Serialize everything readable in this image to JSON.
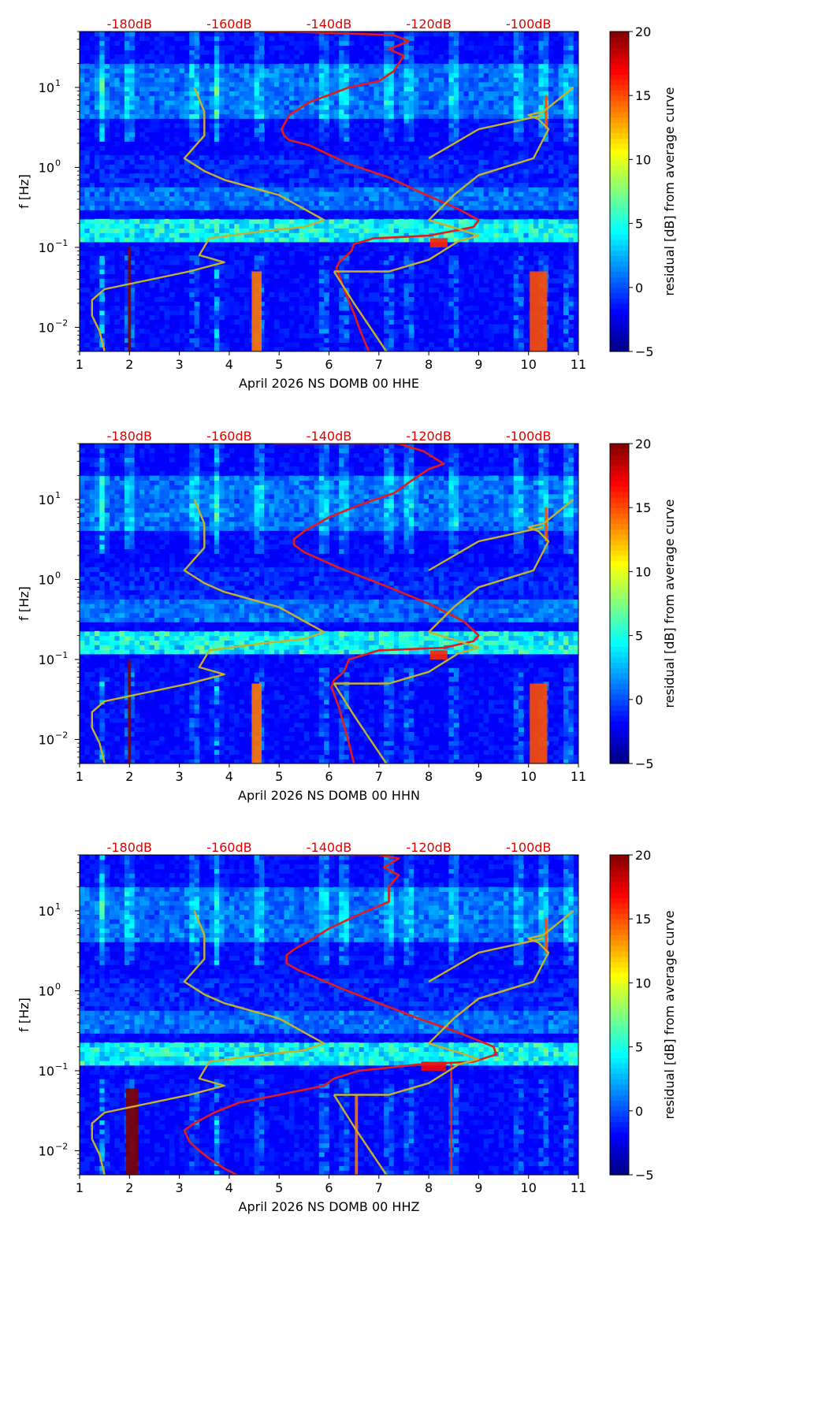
{
  "chart_data": [
    {
      "type": "heatmap",
      "xlabel": "April 2026 NS DOMB 00 HHE",
      "ylabel": "f [Hz]",
      "xlim": [
        1,
        11
      ],
      "ylim": [
        0.005,
        50
      ],
      "y_scale": "log",
      "x_ticks": [
        1,
        2,
        3,
        4,
        5,
        6,
        7,
        8,
        9,
        10,
        11
      ],
      "y_ticks": [
        {
          "value": 0.01,
          "label": "10",
          "exp": "−2"
        },
        {
          "value": 0.1,
          "label": "10",
          "exp": "−1"
        },
        {
          "value": 1,
          "label": "10",
          "exp": "0"
        },
        {
          "value": 10,
          "label": "10",
          "exp": "1"
        }
      ],
      "top_labels": [
        {
          "x": 2,
          "text": "-180dB"
        },
        {
          "x": 4,
          "text": "-160dB"
        },
        {
          "x": 6,
          "text": "-140dB"
        },
        {
          "x": 8,
          "text": "-120dB"
        },
        {
          "x": 10,
          "text": "-100dB"
        }
      ],
      "colorbar": {
        "label": "residual [dB] from average curve",
        "min": -5,
        "max": 20,
        "ticks": [
          -5,
          0,
          5,
          10,
          15,
          20
        ],
        "colormap": "jet"
      },
      "hot_columns": [
        {
          "x": 2.0,
          "w": 0.06,
          "fmin": 0.005,
          "fmax": 0.1,
          "v": 20
        },
        {
          "x": 4.55,
          "w": 0.2,
          "fmin": 0.005,
          "fmax": 0.05,
          "v": 14
        },
        {
          "x": 10.2,
          "w": 0.35,
          "fmin": 0.005,
          "fmax": 0.05,
          "v": 15
        },
        {
          "x": 8.2,
          "w": 0.35,
          "fmin": 0.1,
          "fmax": 0.13,
          "v": 16
        },
        {
          "x": 10.35,
          "w": 0.06,
          "fmin": 3,
          "fmax": 8,
          "v": 15
        }
      ],
      "series": [
        {
          "color": "#e41a1c",
          "x": [
            4.7,
            5.2,
            7.3,
            7.6,
            7.2,
            7.5,
            7.4,
            7.3,
            7.0,
            6.4,
            5.6,
            5.2,
            5.05,
            5.1,
            5.2,
            5.6,
            6.4,
            7.2,
            7.8,
            8.6,
            9.0,
            8.9,
            8.0,
            6.9,
            6.5,
            6.45,
            6.2,
            6.15,
            6.2,
            6.35,
            6.5,
            6.6,
            6.7,
            6.8
          ],
          "y": [
            50,
            50,
            45,
            38,
            30,
            25,
            20,
            16,
            12,
            10,
            6.5,
            4.5,
            3,
            2.5,
            2.2,
            1.9,
            1.1,
            0.75,
            0.5,
            0.3,
            0.22,
            0.18,
            0.14,
            0.13,
            0.11,
            0.09,
            0.065,
            0.055,
            0.045,
            0.025,
            0.015,
            0.01,
            0.007,
            0.005
          ]
        },
        {
          "color": "#c8b22a",
          "x": [
            3.3,
            3.5,
            3.5,
            3.1,
            3.5,
            3.9,
            5.0,
            5.9,
            5.5,
            4.7,
            4.0,
            3.6,
            3.4,
            3.9,
            3.2,
            1.5,
            1.25,
            1.25,
            1.4,
            1.5
          ],
          "y": [
            10,
            5,
            2.5,
            1.3,
            0.9,
            0.7,
            0.45,
            0.22,
            0.18,
            0.16,
            0.14,
            0.13,
            0.08,
            0.065,
            0.05,
            0.03,
            0.022,
            0.014,
            0.009,
            0.005
          ]
        },
        {
          "color": "#c8b22a",
          "x": [
            6.1,
            7.2,
            8.0,
            8.4,
            8.6,
            9.0,
            8.6,
            8.0,
            8.5,
            9.0,
            10.1,
            10.4,
            10.2,
            10.0,
            10.0,
            10.3,
            10.9
          ],
          "y": [
            0.05,
            0.05,
            0.07,
            0.1,
            0.12,
            0.14,
            0.17,
            0.22,
            0.45,
            0.8,
            1.3,
            3,
            4,
            4.5,
            4.5,
            5,
            10
          ]
        },
        {
          "color": "#c8b22a",
          "x": [
            6.1,
            6.5,
            7.15
          ],
          "y": [
            0.05,
            0.02,
            0.005
          ]
        },
        {
          "color": "#c8b22a",
          "x": [
            8.0,
            9.0,
            10.3
          ],
          "y": [
            1.3,
            3,
            4.5
          ]
        }
      ]
    },
    {
      "type": "heatmap",
      "xlabel": "April 2026 NS DOMB 00 HHN",
      "ylabel": "f [Hz]",
      "xlim": [
        1,
        11
      ],
      "ylim": [
        0.005,
        50
      ],
      "y_scale": "log",
      "x_ticks": [
        1,
        2,
        3,
        4,
        5,
        6,
        7,
        8,
        9,
        10,
        11
      ],
      "y_ticks": [
        {
          "value": 0.01,
          "label": "10",
          "exp": "−2"
        },
        {
          "value": 0.1,
          "label": "10",
          "exp": "−1"
        },
        {
          "value": 1,
          "label": "10",
          "exp": "0"
        },
        {
          "value": 10,
          "label": "10",
          "exp": "1"
        }
      ],
      "top_labels": [
        {
          "x": 2,
          "text": "-180dB"
        },
        {
          "x": 4,
          "text": "-160dB"
        },
        {
          "x": 6,
          "text": "-140dB"
        },
        {
          "x": 8,
          "text": "-120dB"
        },
        {
          "x": 10,
          "text": "-100dB"
        }
      ],
      "colorbar": {
        "label": "residual [dB] from average curve",
        "min": -5,
        "max": 20,
        "ticks": [
          -5,
          0,
          5,
          10,
          15,
          20
        ],
        "colormap": "jet"
      },
      "hot_columns": [
        {
          "x": 2.0,
          "w": 0.06,
          "fmin": 0.005,
          "fmax": 0.1,
          "v": 20
        },
        {
          "x": 4.55,
          "w": 0.2,
          "fmin": 0.005,
          "fmax": 0.05,
          "v": 14
        },
        {
          "x": 10.2,
          "w": 0.35,
          "fmin": 0.005,
          "fmax": 0.05,
          "v": 15
        },
        {
          "x": 8.2,
          "w": 0.35,
          "fmin": 0.1,
          "fmax": 0.13,
          "v": 16
        },
        {
          "x": 10.35,
          "w": 0.06,
          "fmin": 3,
          "fmax": 8,
          "v": 15
        }
      ],
      "series": [
        {
          "color": "#e41a1c",
          "x": [
            4.9,
            7.4,
            7.9,
            8.3,
            8.0,
            7.7,
            7.3,
            6.6,
            6.0,
            5.5,
            5.3,
            5.3,
            5.5,
            6.2,
            7.2,
            8.0,
            8.7,
            9.0,
            8.9,
            8.3,
            7.0,
            6.4,
            6.3,
            6.1,
            6.05,
            6.2,
            6.3,
            6.4,
            6.5
          ],
          "y": [
            50,
            50,
            40,
            28,
            24,
            18,
            12,
            8.5,
            6,
            4,
            3.2,
            2.7,
            2.2,
            1.4,
            0.8,
            0.5,
            0.3,
            0.2,
            0.17,
            0.14,
            0.13,
            0.1,
            0.07,
            0.055,
            0.045,
            0.025,
            0.015,
            0.009,
            0.005
          ]
        },
        {
          "color": "#c8b22a",
          "x": [
            3.3,
            3.5,
            3.5,
            3.1,
            3.5,
            3.9,
            5.0,
            5.9,
            5.5,
            4.7,
            4.0,
            3.6,
            3.4,
            3.9,
            3.2,
            1.5,
            1.25,
            1.25,
            1.4,
            1.5
          ],
          "y": [
            10,
            5,
            2.5,
            1.3,
            0.9,
            0.7,
            0.45,
            0.22,
            0.18,
            0.16,
            0.14,
            0.13,
            0.08,
            0.065,
            0.05,
            0.03,
            0.022,
            0.014,
            0.009,
            0.005
          ]
        },
        {
          "color": "#c8b22a",
          "x": [
            6.1,
            7.2,
            8.0,
            8.4,
            8.6,
            9.0,
            8.6,
            8.0,
            8.5,
            9.0,
            10.1,
            10.4,
            10.2,
            10.0,
            10.0,
            10.3,
            10.9
          ],
          "y": [
            0.05,
            0.05,
            0.07,
            0.1,
            0.12,
            0.14,
            0.17,
            0.22,
            0.45,
            0.8,
            1.3,
            3,
            4,
            4.5,
            4.5,
            5,
            10
          ]
        },
        {
          "color": "#c8b22a",
          "x": [
            6.1,
            6.5,
            7.15
          ],
          "y": [
            0.05,
            0.02,
            0.005
          ]
        },
        {
          "color": "#c8b22a",
          "x": [
            8.0,
            9.0,
            10.3
          ],
          "y": [
            1.3,
            3,
            4.5
          ]
        }
      ]
    },
    {
      "type": "heatmap",
      "xlabel": "April 2026 NS DOMB 00 HHZ",
      "ylabel": "f [Hz]",
      "xlim": [
        1,
        11
      ],
      "ylim": [
        0.005,
        50
      ],
      "y_scale": "log",
      "x_ticks": [
        1,
        2,
        3,
        4,
        5,
        6,
        7,
        8,
        9,
        10,
        11
      ],
      "y_ticks": [
        {
          "value": 0.01,
          "label": "10",
          "exp": "−2"
        },
        {
          "value": 0.1,
          "label": "10",
          "exp": "−1"
        },
        {
          "value": 1,
          "label": "10",
          "exp": "0"
        },
        {
          "value": 10,
          "label": "10",
          "exp": "1"
        }
      ],
      "top_labels": [
        {
          "x": 2,
          "text": "-180dB"
        },
        {
          "x": 4,
          "text": "-160dB"
        },
        {
          "x": 6,
          "text": "-140dB"
        },
        {
          "x": 8,
          "text": "-120dB"
        },
        {
          "x": 10,
          "text": "-100dB"
        }
      ],
      "colorbar": {
        "label": "residual [dB] from average curve",
        "min": -5,
        "max": 20,
        "ticks": [
          -5,
          0,
          5,
          10,
          15,
          20
        ],
        "colormap": "jet"
      },
      "hot_columns": [
        {
          "x": 2.05,
          "w": 0.25,
          "fmin": 0.005,
          "fmax": 0.06,
          "v": 20
        },
        {
          "x": 8.1,
          "w": 0.5,
          "fmin": 0.1,
          "fmax": 0.13,
          "v": 17
        },
        {
          "x": 6.55,
          "w": 0.06,
          "fmin": 0.005,
          "fmax": 0.05,
          "v": 14
        },
        {
          "x": 10.35,
          "w": 0.06,
          "fmin": 3,
          "fmax": 8,
          "v": 15
        },
        {
          "x": 8.45,
          "w": 0.04,
          "fmin": 0.005,
          "fmax": 0.13,
          "v": 16
        }
      ],
      "series": [
        {
          "color": "#e41a1c",
          "x": [
            4.7,
            7.0,
            7.4,
            7.1,
            7.4,
            7.2,
            7.2,
            6.6,
            6.0,
            5.6,
            5.3,
            5.15,
            5.15,
            5.4,
            6.2,
            7.0,
            7.8,
            8.6,
            9.3,
            9.35,
            8.9,
            7.8,
            6.6,
            6.1,
            5.9,
            5.0,
            4.2,
            3.7,
            3.3,
            3.1,
            3.2,
            3.4,
            3.6,
            3.9,
            4.15
          ],
          "y": [
            50,
            50,
            45,
            35,
            28,
            20,
            13,
            9,
            6,
            4.2,
            3.3,
            2.8,
            2.2,
            1.8,
            1.1,
            0.7,
            0.45,
            0.3,
            0.2,
            0.16,
            0.13,
            0.12,
            0.1,
            0.08,
            0.065,
            0.05,
            0.04,
            0.03,
            0.022,
            0.018,
            0.013,
            0.01,
            0.008,
            0.006,
            0.005
          ]
        },
        {
          "color": "#c8b22a",
          "x": [
            3.3,
            3.5,
            3.5,
            3.1,
            3.5,
            3.9,
            5.0,
            5.9,
            5.5,
            4.7,
            4.0,
            3.6,
            3.4,
            3.9,
            3.2,
            1.5,
            1.25,
            1.25,
            1.4,
            1.5
          ],
          "y": [
            10,
            5,
            2.5,
            1.3,
            0.9,
            0.7,
            0.45,
            0.22,
            0.18,
            0.16,
            0.14,
            0.13,
            0.08,
            0.065,
            0.05,
            0.03,
            0.022,
            0.014,
            0.009,
            0.005
          ]
        },
        {
          "color": "#c8b22a",
          "x": [
            6.1,
            7.2,
            8.0,
            8.4,
            8.6,
            9.0,
            8.6,
            8.0,
            8.5,
            9.0,
            10.1,
            10.4,
            10.2,
            10.0,
            10.0,
            10.3,
            10.9
          ],
          "y": [
            0.05,
            0.05,
            0.07,
            0.1,
            0.12,
            0.14,
            0.17,
            0.22,
            0.45,
            0.8,
            1.3,
            3,
            4,
            4.5,
            4.5,
            5,
            10
          ]
        },
        {
          "color": "#c8b22a",
          "x": [
            6.1,
            6.5,
            7.15
          ],
          "y": [
            0.05,
            0.02,
            0.005
          ]
        },
        {
          "color": "#c8b22a",
          "x": [
            8.0,
            9.0,
            10.3
          ],
          "y": [
            1.3,
            3,
            4.5
          ]
        }
      ]
    }
  ]
}
